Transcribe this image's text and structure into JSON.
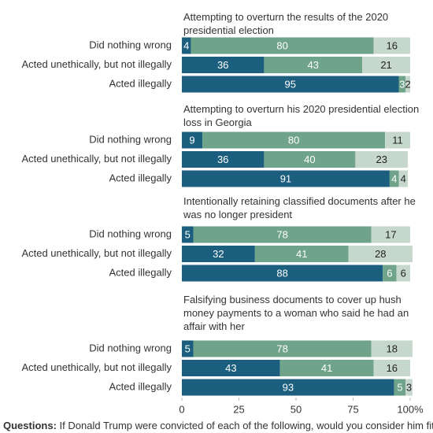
{
  "chart_data": {
    "type": "bar",
    "orientation": "horizontal",
    "stacked": true,
    "colors": [
      "#1b5e7e",
      "#6fa38a",
      "#c6d7cd"
    ],
    "label_colors": [
      "#ffffff",
      "#ffffff",
      "#222222"
    ],
    "xlim": [
      0,
      100
    ],
    "xticks": [
      0,
      25,
      50,
      75,
      {
        "value": 100,
        "label": "100%"
      }
    ],
    "panels": [
      {
        "title": "Attempting to overturn the results of the 2020 presidential election",
        "categories": [
          "Did nothing wrong",
          "Acted unethically, but not illegally",
          "Acted illegally"
        ],
        "series": [
          {
            "values": [
              4,
              36,
              95
            ]
          },
          {
            "values": [
              80,
              43,
              3
            ]
          },
          {
            "values": [
              16,
              21,
              2
            ]
          }
        ]
      },
      {
        "title": "Attempting to overturn his 2020 presidential election loss in Georgia",
        "categories": [
          "Did nothing wrong",
          "Acted unethically, but not illegally",
          "Acted illegally"
        ],
        "series": [
          {
            "values": [
              9,
              36,
              91
            ]
          },
          {
            "values": [
              80,
              40,
              4
            ]
          },
          {
            "values": [
              11,
              23,
              4
            ]
          }
        ]
      },
      {
        "title": "Intentionally retaining classified documents after he was no longer president",
        "categories": [
          "Did nothing wrong",
          "Acted unethically, but not illegally",
          "Acted illegally"
        ],
        "series": [
          {
            "values": [
              5,
              32,
              88
            ]
          },
          {
            "values": [
              78,
              41,
              6
            ]
          },
          {
            "values": [
              17,
              28,
              6
            ]
          }
        ]
      },
      {
        "title": "Falsifying business documents to cover up hush money payments to a woman who said he had an affair with her",
        "categories": [
          "Did nothing wrong",
          "Acted unethically, but not illegally",
          "Acted illegally"
        ],
        "series": [
          {
            "values": [
              5,
              43,
              93
            ]
          },
          {
            "values": [
              78,
              41,
              5
            ]
          },
          {
            "values": [
              18,
              16,
              3
            ]
          }
        ]
      }
    ],
    "footer": {
      "label": "Questions:",
      "text": "If Donald Trump were convicted of each of the following, would you consider him fit to"
    }
  }
}
